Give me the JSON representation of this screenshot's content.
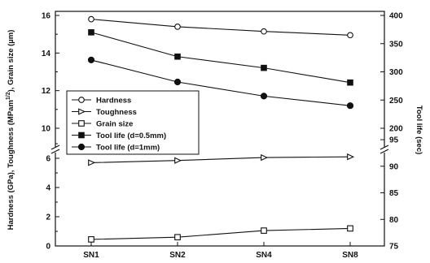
{
  "chart_data": {
    "type": "line",
    "categories": [
      "SN1",
      "SN2",
      "SN4",
      "SN8"
    ],
    "left_axis": {
      "label": "Hardness (GPa), Toughness (MPam¹ᐟ²), Grain size (µm)",
      "label_main": "Hardness (GPa), Toughness (MPam",
      "label_sup": "1/2",
      "label_tail": "), Grain size (µm)",
      "lower_range": [
        0,
        8
      ],
      "upper_range": [
        10,
        16
      ],
      "lower_ticks": [
        "0",
        "2",
        "4",
        "6"
      ],
      "upper_ticks": [
        "10",
        "12",
        "14",
        "16"
      ]
    },
    "right_axis": {
      "label": "Tool life (sec)",
      "lower_range": [
        75,
        97
      ],
      "upper_range": [
        200,
        400
      ],
      "lower_ticks": [
        "75",
        "80",
        "85",
        "90",
        "95"
      ],
      "upper_ticks": [
        "200",
        "250",
        "300",
        "350",
        "400"
      ]
    },
    "series": [
      {
        "name": "Hardness",
        "axis": "left",
        "marker": "circle-open",
        "values": [
          15.8,
          15.4,
          15.15,
          14.95
        ]
      },
      {
        "name": "Toughness",
        "axis": "left",
        "marker": "triangle-right-open",
        "values": [
          5.7,
          5.85,
          6.05,
          6.1
        ]
      },
      {
        "name": "Grain size",
        "axis": "left",
        "marker": "square-open",
        "values": [
          0.45,
          0.6,
          1.05,
          1.2
        ]
      },
      {
        "name": "Tool life (d=0.5mm)",
        "axis": "right",
        "marker": "square-filled",
        "values": [
          370,
          327,
          307,
          281
        ]
      },
      {
        "name": "Tool life (d=1mm)",
        "axis": "right",
        "marker": "circle-filled",
        "values": [
          321,
          282,
          257,
          240
        ]
      }
    ],
    "legend": {
      "placement": "center-left"
    },
    "grid": false
  }
}
